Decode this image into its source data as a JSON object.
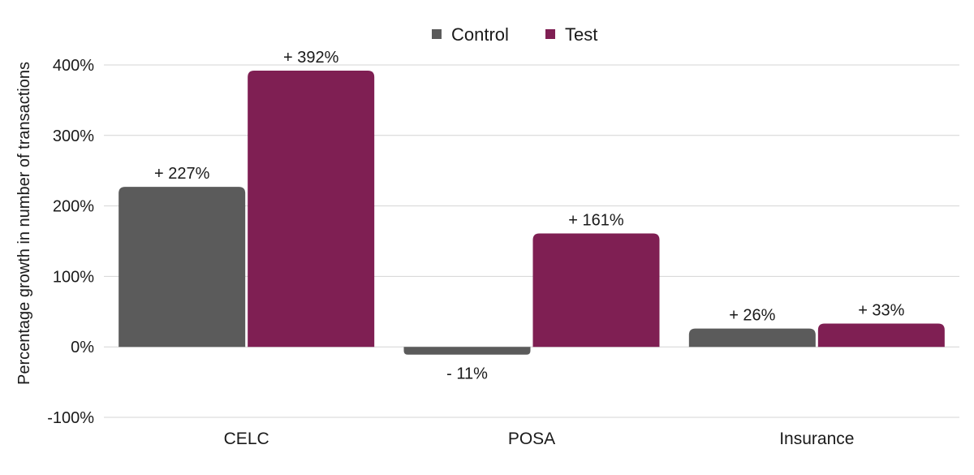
{
  "chart_data": {
    "type": "bar",
    "title": "",
    "xlabel": "",
    "ylabel": "Percentage growth in number of transactions",
    "categories": [
      "CELC",
      "POSA",
      "Insurance"
    ],
    "series": [
      {
        "name": "Control",
        "values": [
          227,
          -11,
          26
        ],
        "labels": [
          "+ 227%",
          "- 11%",
          "+ 26%"
        ],
        "color": "#5b5b5b"
      },
      {
        "name": "Test",
        "values": [
          392,
          161,
          33
        ],
        "labels": [
          "+ 392%",
          "+ 161%",
          "+ 33%"
        ],
        "color": "#7f1f53"
      }
    ],
    "ylim": [
      -100,
      400
    ],
    "yticks": [
      -100,
      0,
      100,
      200,
      300,
      400
    ],
    "ytick_labels": [
      "-100%",
      "0%",
      "100%",
      "200%",
      "300%",
      "400%"
    ],
    "grid": true,
    "legend": "top-center",
    "gridline_color": "#d4d4d4"
  }
}
